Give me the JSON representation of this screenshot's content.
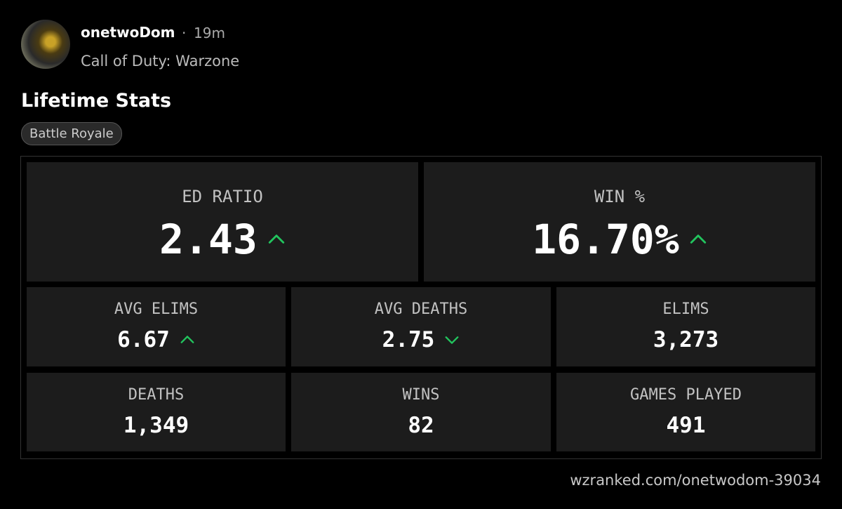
{
  "header": {
    "username": "onetwoDom",
    "separator": "·",
    "time": "19m",
    "game": "Call of Duty: Warzone"
  },
  "title": "Lifetime Stats",
  "tag": "Battle Royale",
  "stats": [
    {
      "label": "ED RATIO",
      "value": "2.43",
      "trend": "up"
    },
    {
      "label": "WIN %",
      "value": "16.70%",
      "trend": "up"
    },
    {
      "label": "AVG ELIMS",
      "value": "6.67",
      "trend": "up"
    },
    {
      "label": "AVG DEATHS",
      "value": "2.75",
      "trend": "down"
    },
    {
      "label": "ELIMS",
      "value": "3,273"
    },
    {
      "label": "DEATHS",
      "value": "1,349"
    },
    {
      "label": "WINS",
      "value": "82"
    },
    {
      "label": "GAMES PLAYED",
      "value": "491"
    }
  ],
  "footer": "wzranked.com/onetwodom-39034"
}
